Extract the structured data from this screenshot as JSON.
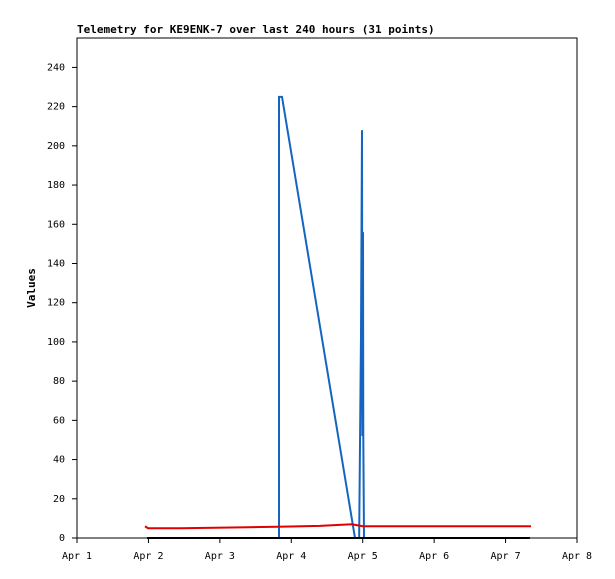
{
  "chart_data": {
    "type": "line",
    "title": "Telemetry for KE9ENK-7 over last 240 hours (31 points)",
    "ylabel": "Values",
    "xlim": [
      1,
      8
    ],
    "xticks": [
      {
        "value": 1,
        "label": "Apr 1"
      },
      {
        "value": 2,
        "label": "Apr 2"
      },
      {
        "value": 3,
        "label": "Apr 3"
      },
      {
        "value": 4,
        "label": "Apr 4"
      },
      {
        "value": 5,
        "label": "Apr 5"
      },
      {
        "value": 6,
        "label": "Apr 6"
      },
      {
        "value": 7,
        "label": "Apr 7"
      },
      {
        "value": 8,
        "label": "Apr 8"
      }
    ],
    "ylim": [
      0,
      255
    ],
    "yticks": [
      0,
      20,
      40,
      60,
      80,
      100,
      120,
      140,
      160,
      180,
      200,
      220,
      240
    ],
    "series": [
      {
        "color": "#1565c0",
        "x": [
          3.828,
          3.828,
          3.87,
          4.892,
          4.95,
          4.976,
          4.99,
          4.995,
          5.004,
          5.008,
          5.018
        ],
        "values": [
          0,
          225,
          225,
          0,
          0,
          104,
          208,
          52,
          156,
          52,
          0
        ]
      },
      {
        "color": "#e00000",
        "x": [
          1.952,
          1.994,
          2.45,
          3.4,
          3.9,
          4.4,
          4.85,
          5.0,
          5.5,
          6.5,
          7.356
        ],
        "values": [
          6,
          5,
          5,
          5.5,
          5.8,
          6.2,
          7,
          6,
          6,
          6,
          6
        ]
      },
      {
        "color": "#000000",
        "x": [
          1.98,
          4.9,
          5.0,
          7.34
        ],
        "values": [
          0,
          0,
          0,
          0
        ]
      }
    ]
  }
}
